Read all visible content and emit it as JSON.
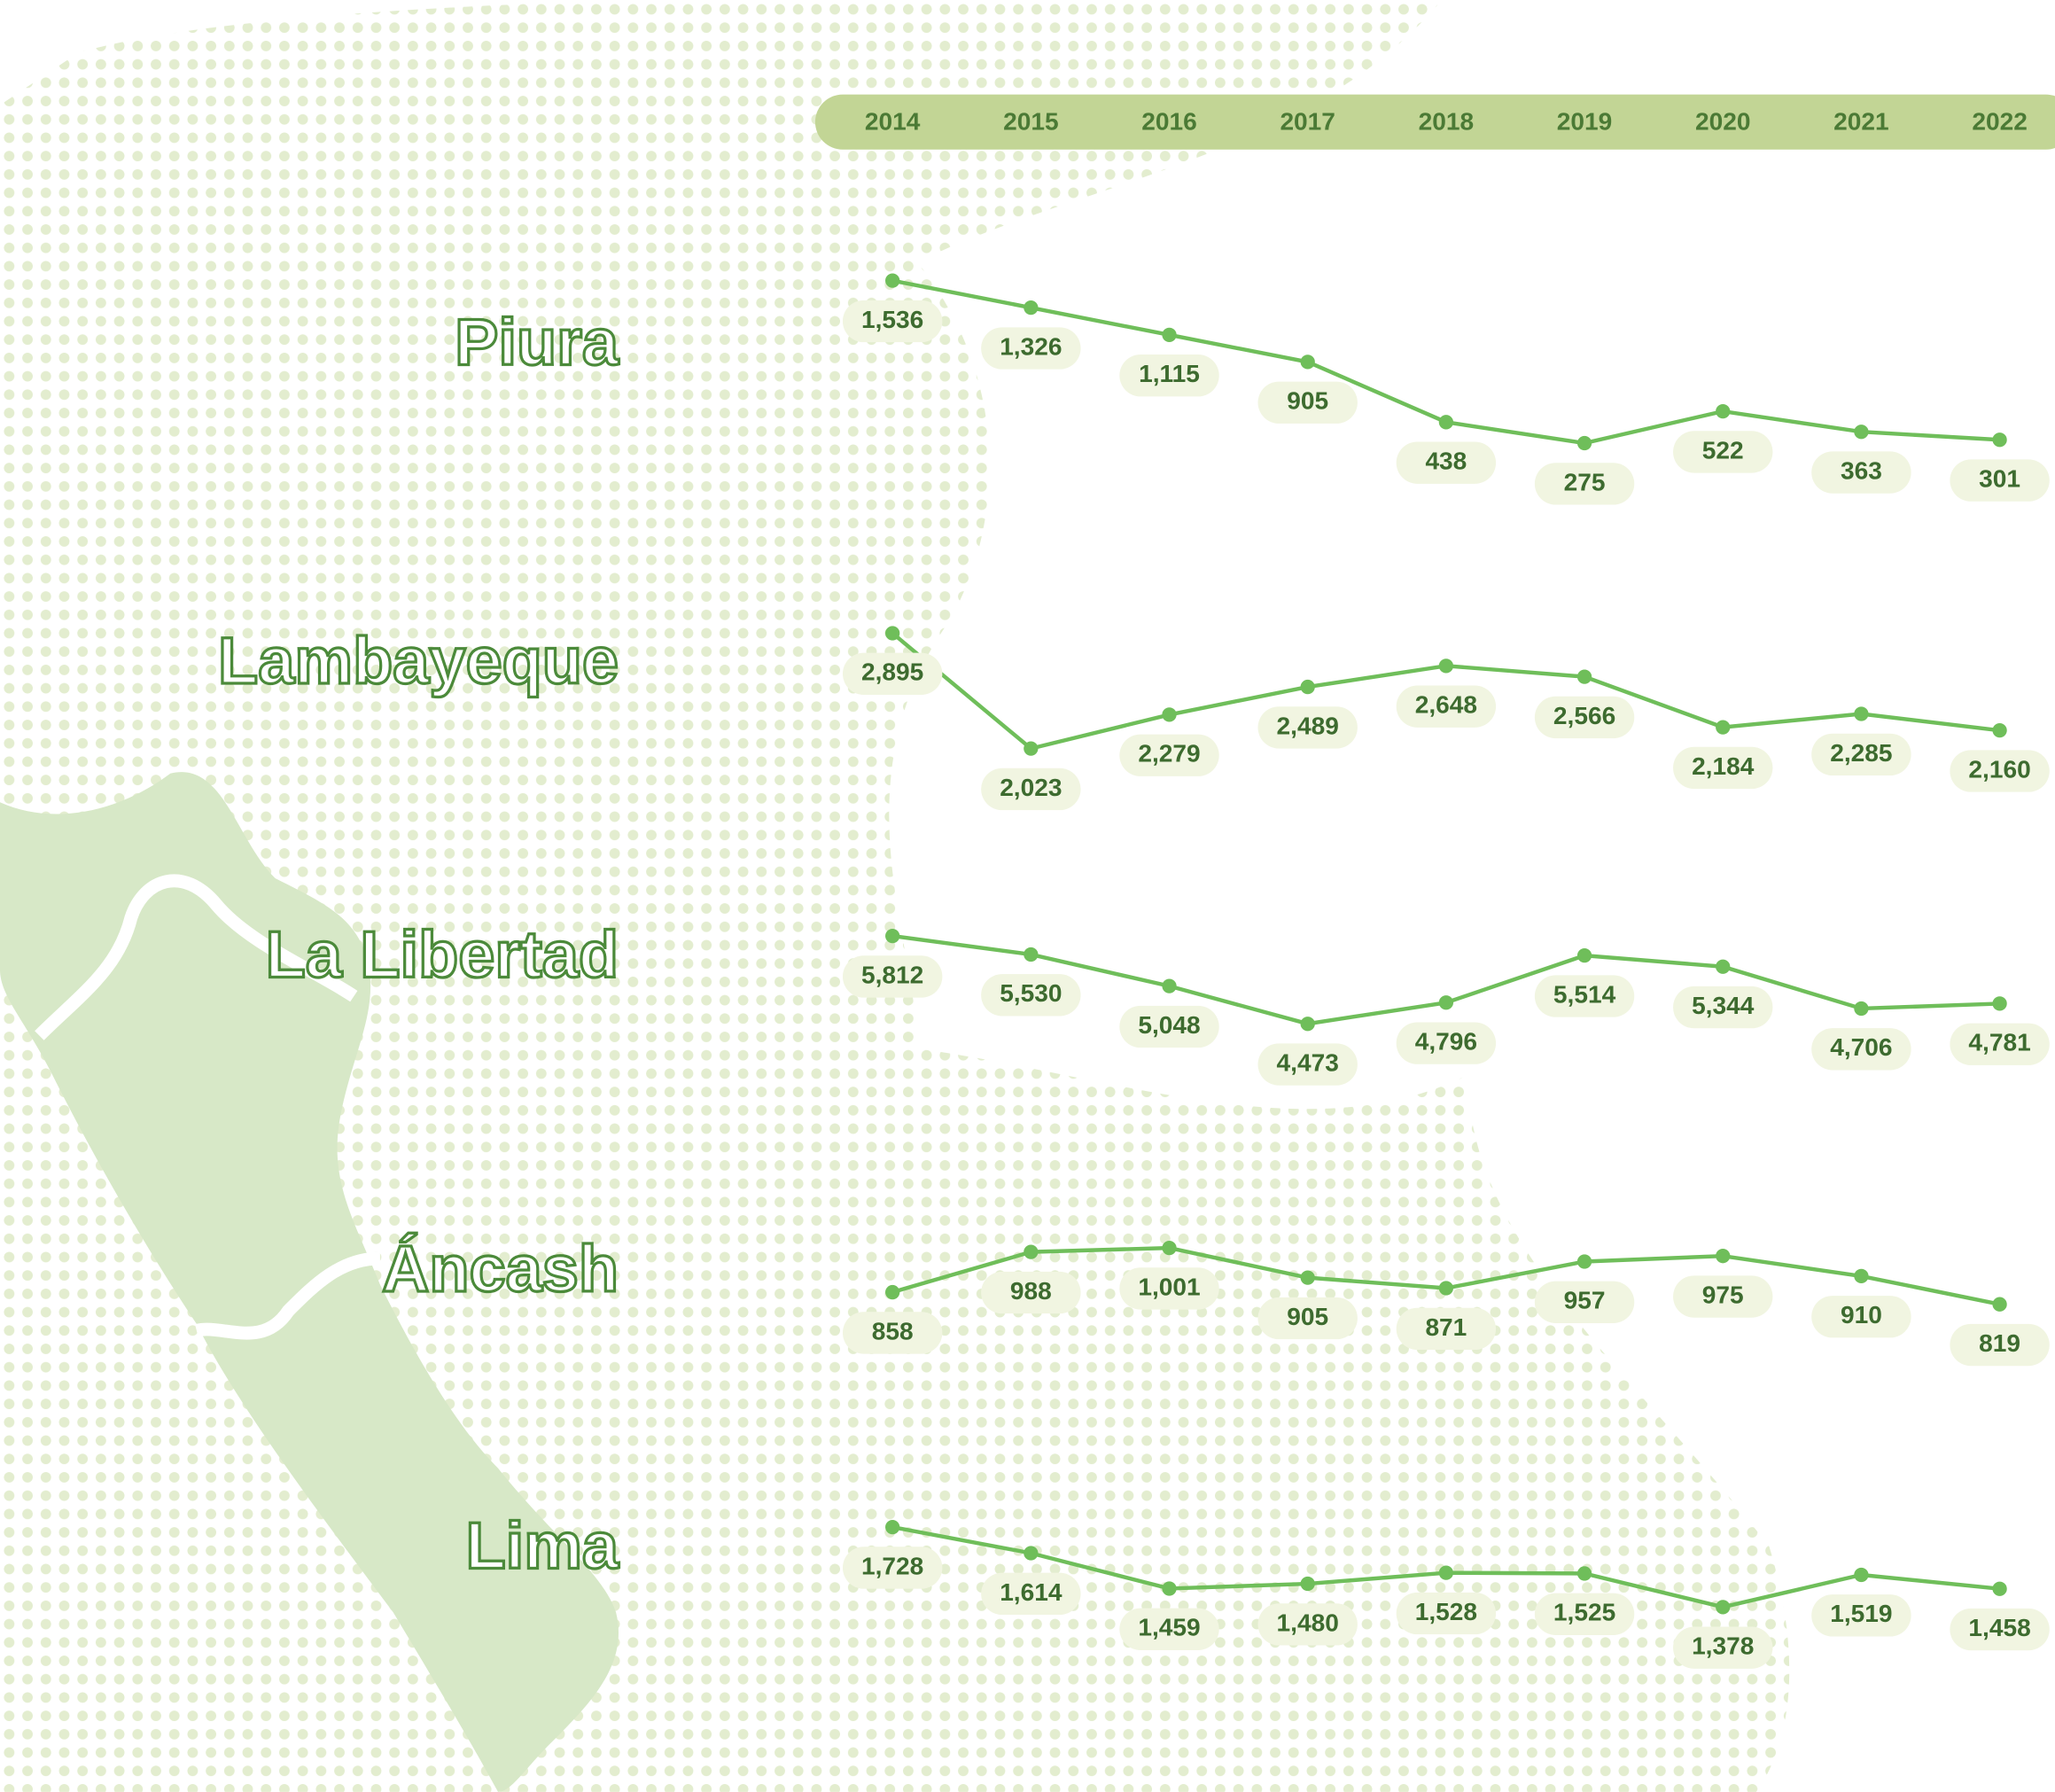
{
  "chart_data": {
    "type": "line",
    "categories": [
      "2014",
      "2015",
      "2016",
      "2017",
      "2018",
      "2019",
      "2020",
      "2021",
      "2022"
    ],
    "series": [
      {
        "name": "Piura",
        "color": "#6fbe5a",
        "values": [
          1536,
          1326,
          1115,
          905,
          438,
          275,
          522,
          363,
          301
        ],
        "value_labels": [
          "1,536",
          "1,326",
          "1,115",
          "905",
          "438",
          "275",
          "522",
          "363",
          "301"
        ]
      },
      {
        "name": "Lambayeque",
        "color": "#6fbe5a",
        "values": [
          2895,
          2023,
          2279,
          2489,
          2648,
          2566,
          2184,
          2285,
          2160
        ],
        "value_labels": [
          "2,895",
          "2,023",
          "2,279",
          "2,489",
          "2,648",
          "2,566",
          "2,184",
          "2,285",
          "2,160"
        ]
      },
      {
        "name": "La Libertad",
        "color": "#6fbe5a",
        "values": [
          5812,
          5530,
          5048,
          4473,
          4796,
          5514,
          5344,
          4706,
          4781
        ],
        "value_labels": [
          "5,812",
          "5,530",
          "5,048",
          "4,473",
          "4,796",
          "5,514",
          "5,344",
          "4,706",
          "4,781"
        ]
      },
      {
        "name": "Áncash",
        "color": "#6fbe5a",
        "values": [
          858,
          988,
          1001,
          905,
          871,
          957,
          975,
          910,
          819
        ],
        "value_labels": [
          "858",
          "988",
          "1,001",
          "905",
          "871",
          "957",
          "975",
          "910",
          "819"
        ]
      },
      {
        "name": "Lima",
        "color": "#6fbe5a",
        "values": [
          1728,
          1614,
          1459,
          1480,
          1528,
          1525,
          1378,
          1519,
          1458
        ],
        "value_labels": [
          "1,728",
          "1,614",
          "1,459",
          "1,480",
          "1,528",
          "1,525",
          "1,378",
          "1,519",
          "1,458"
        ]
      }
    ]
  }
}
